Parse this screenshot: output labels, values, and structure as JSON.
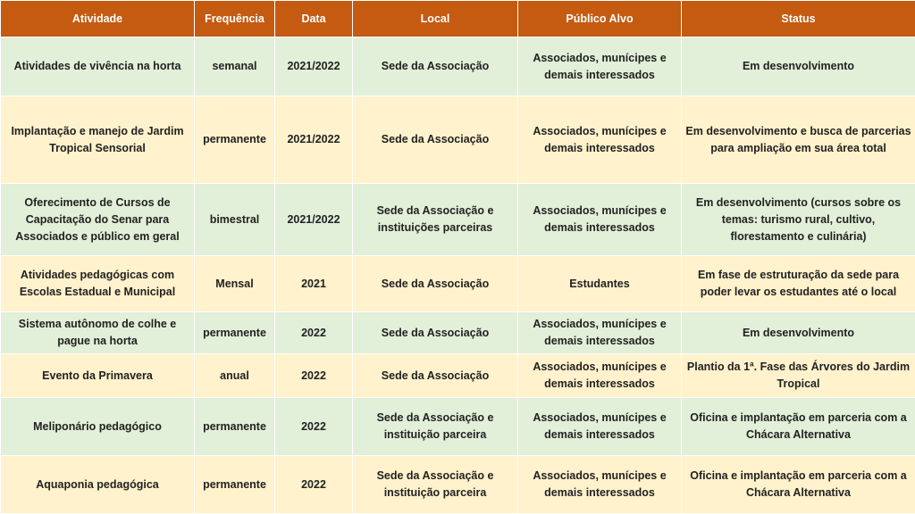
{
  "table": {
    "columns": [
      "Atividade",
      "Frequência",
      "Data",
      "Local",
      "Público Alvo",
      "Status"
    ],
    "rows": [
      [
        "Atividades de vivência na horta",
        "semanal",
        "2021/2022",
        "Sede da Associação",
        "Associados, munícipes e demais interessados",
        "Em desenvolvimento"
      ],
      [
        "Implantação e manejo de Jardim Tropical Sensorial",
        "permanente",
        "2021/2022",
        "Sede da Associação",
        "Associados, munícipes e demais interessados",
        "Em desenvolvimento e busca de parcerias para ampliação em sua área total"
      ],
      [
        "Oferecimento de Cursos de Capacitação do Senar para Associados e público em geral",
        "bimestral",
        "2021/2022",
        "Sede da Associação e instituições parceiras",
        "Associados, munícipes e demais interessados",
        "Em desenvolvimento (cursos sobre os temas: turismo rural, cultivo, florestamento e culinária)"
      ],
      [
        "Atividades pedagógicas com Escolas Estadual e Municipal",
        "Mensal",
        "2021",
        "Sede da Associação",
        "Estudantes",
        "Em fase de estruturação da sede para poder levar os estudantes até o local"
      ],
      [
        "Sistema autônomo de colhe e pague na horta",
        "permanente",
        "2022",
        "Sede da Associação",
        "Associados, munícipes e demais interessados",
        "Em desenvolvimento"
      ],
      [
        "Evento da Primavera",
        "anual",
        "2022",
        "Sede da Associação",
        "Associados, munícipes e demais interessados",
        "Plantio da 1ª. Fase das Árvores do Jardim Tropical"
      ],
      [
        "Meliponário pedagógico",
        "permanente",
        "2022",
        "Sede da Associação e instituição parceira",
        "Associados, munícipes e demais interessados",
        "Oficina e implantação em parceria com a Chácara Alternativa"
      ],
      [
        "Aquaponia pedagógica",
        "permanente",
        "2022",
        "Sede da Associação e instituição parceira",
        "Associados, munícipes e demais interessados",
        "Oficina e implantação em parceria com a Chácara Alternativa"
      ]
    ]
  }
}
